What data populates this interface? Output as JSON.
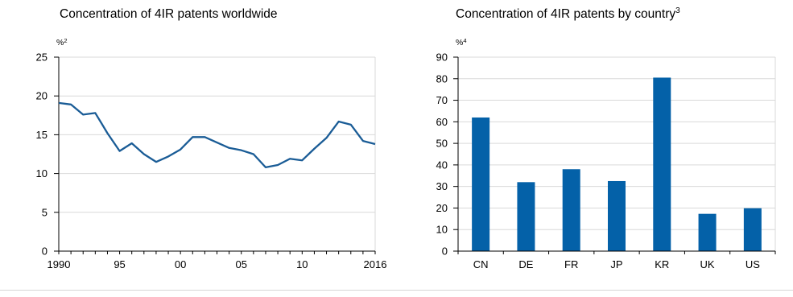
{
  "chart_data": [
    {
      "type": "line",
      "title": "Concentration of 4IR patents worldwide",
      "title_sup": "",
      "unit": "%",
      "unit_sup": "2",
      "x": [
        1990,
        1991,
        1992,
        1993,
        1994,
        1995,
        1996,
        1997,
        1998,
        1999,
        2000,
        2001,
        2002,
        2003,
        2004,
        2005,
        2006,
        2007,
        2008,
        2009,
        2010,
        2011,
        2012,
        2013,
        2014,
        2015,
        2016
      ],
      "series": [
        {
          "values": [
            19.1,
            18.9,
            17.6,
            17.8,
            15.2,
            12.9,
            13.9,
            12.5,
            11.5,
            12.2,
            13.1,
            14.7,
            14.7,
            14.0,
            13.3,
            13.0,
            12.5,
            10.8,
            11.1,
            11.9,
            11.7,
            13.2,
            14.6,
            16.7,
            16.3,
            14.2,
            13.8
          ],
          "color": "#1a5c96"
        }
      ],
      "xlim": [
        1990,
        2016
      ],
      "ylim": [
        0,
        25
      ],
      "x_ticks": [
        1990,
        1995,
        2000,
        2005,
        2010,
        2016
      ],
      "x_tick_labels": [
        "1990",
        "95",
        "00",
        "05",
        "10",
        "2016"
      ],
      "y_ticks": [
        0,
        5,
        10,
        15,
        20,
        25
      ],
      "y_tick_labels": [
        "0",
        "5",
        "10",
        "15",
        "20",
        "25"
      ],
      "grid": true
    },
    {
      "type": "bar",
      "title": "Concentration of 4IR patents by country",
      "title_sup": "3",
      "unit": "%",
      "unit_sup": "4",
      "categories": [
        "CN",
        "DE",
        "FR",
        "JP",
        "KR",
        "UK",
        "US"
      ],
      "values": [
        62,
        32,
        38,
        32.5,
        80.5,
        17.3,
        19.9
      ],
      "color": "#0461a8",
      "ylim": [
        0,
        90
      ],
      "y_ticks": [
        0,
        10,
        20,
        30,
        40,
        50,
        60,
        70,
        80,
        90
      ],
      "y_tick_labels": [
        "0",
        "10",
        "20",
        "30",
        "40",
        "50",
        "60",
        "70",
        "80",
        "90"
      ],
      "grid": true
    }
  ]
}
